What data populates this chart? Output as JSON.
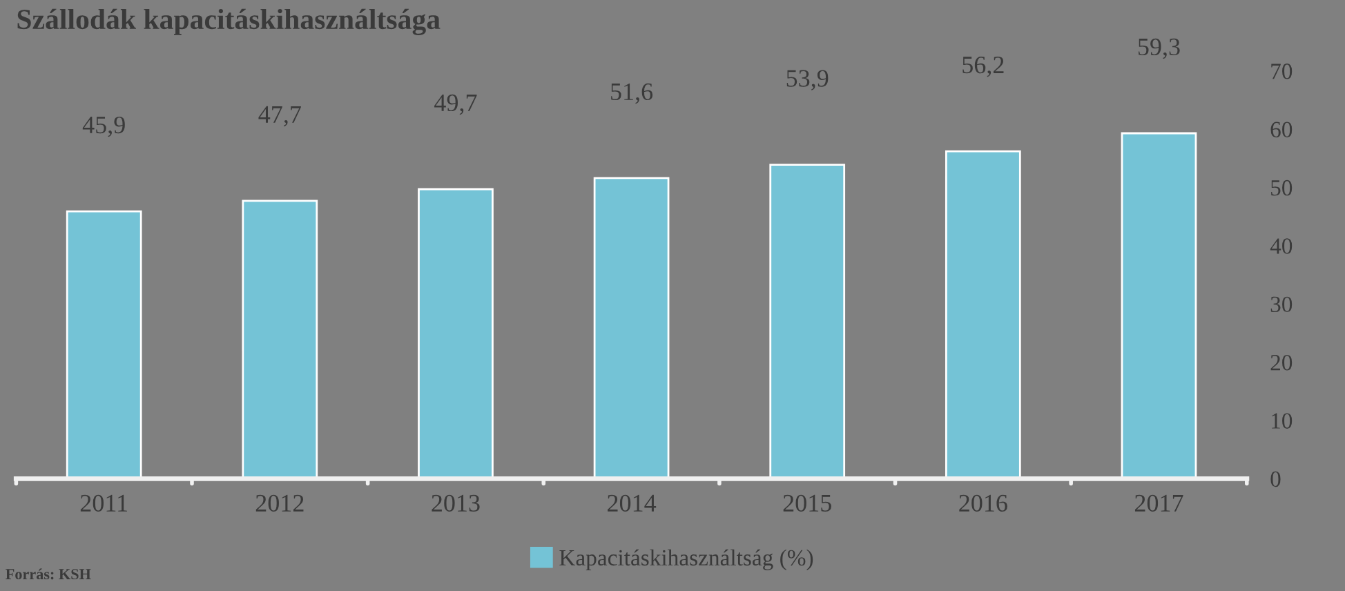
{
  "chart_data": {
    "type": "bar",
    "title": "Szállodák kapacitáskihasználtsága",
    "categories": [
      "2011",
      "2012",
      "2013",
      "2014",
      "2015",
      "2016",
      "2017"
    ],
    "series": [
      {
        "name": "Kapacitáskihasználtság (%)",
        "color": "#74c3d6",
        "values": [
          45.9,
          47.7,
          49.7,
          51.6,
          53.9,
          56.2,
          59.3
        ],
        "value_labels": [
          "45,9",
          "47,7",
          "49,7",
          "51,6",
          "53,9",
          "56,2",
          "59,3"
        ]
      }
    ],
    "ylim": [
      0,
      70
    ],
    "yticks": [
      0,
      10,
      20,
      30,
      40,
      50,
      60,
      70
    ],
    "grid": false,
    "legend": "bottom",
    "annotations": [
      "Forrás: KSH"
    ]
  }
}
